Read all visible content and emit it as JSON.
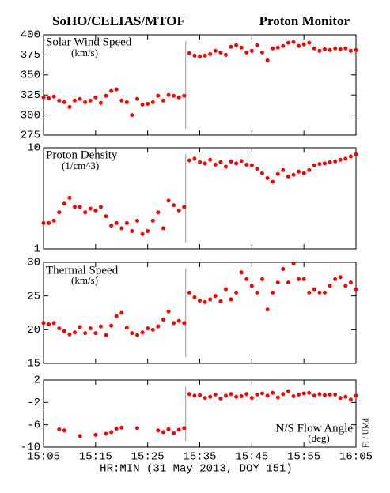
{
  "title_left": "SoHO/CELIAS/MTOF",
  "title_right": "Proton Monitor",
  "x_label": "HR:MIN (31 May 2013, DOY 151)",
  "credit": "FI / UMd",
  "chart_data": [
    {
      "type": "scatter",
      "title": "Solar Wind Speed",
      "unit": "(km/s)",
      "color": "#ff0000",
      "log_scale": false,
      "vline_x": 932.3,
      "xlim": [
        905,
        965
      ],
      "x": [
        905,
        906,
        907,
        908,
        909,
        910,
        911,
        912,
        913,
        914,
        915,
        916,
        917,
        918,
        919,
        920,
        921,
        922,
        923,
        924,
        925,
        926,
        927,
        928,
        929,
        930,
        931,
        932,
        933,
        934,
        935,
        936,
        937,
        938,
        939,
        940,
        941,
        942,
        943,
        944,
        945,
        946,
        947,
        948,
        949,
        950,
        951,
        952,
        953,
        954,
        955,
        956,
        957,
        958,
        959,
        960,
        961,
        962,
        963,
        964,
        965
      ],
      "values": [
        322,
        321,
        323,
        318,
        316,
        310,
        318,
        320,
        316,
        318,
        322,
        315,
        324,
        330,
        332,
        318,
        316,
        300,
        320,
        313,
        314,
        316,
        324,
        318,
        325,
        324,
        322,
        324,
        377,
        374,
        373,
        374,
        376,
        380,
        378,
        375,
        385,
        387,
        384,
        378,
        380,
        387,
        378,
        368,
        383,
        384,
        386,
        390,
        391,
        386,
        388,
        390,
        383,
        380,
        382,
        381,
        383,
        382,
        383,
        380,
        381
      ],
      "ylim": [
        275,
        400
      ],
      "yticks": [
        275,
        300,
        325,
        350,
        375,
        400
      ]
    },
    {
      "type": "scatter",
      "title": "Proton Density",
      "unit": "(1/cm^3)",
      "color": "#ff0000",
      "log_scale": true,
      "vline_x": 932.3,
      "xlim": [
        905,
        965
      ],
      "x": [
        905,
        906,
        907,
        908,
        909,
        910,
        911,
        912,
        913,
        914,
        915,
        916,
        917,
        918,
        919,
        920,
        921,
        922,
        923,
        924,
        925,
        926,
        927,
        928,
        929,
        930,
        931,
        932,
        933,
        934,
        935,
        936,
        937,
        938,
        939,
        940,
        941,
        942,
        943,
        944,
        945,
        946,
        947,
        948,
        949,
        950,
        951,
        952,
        953,
        954,
        955,
        956,
        957,
        958,
        959,
        960,
        961,
        962,
        963,
        964,
        965
      ],
      "values": [
        1.8,
        1.8,
        1.9,
        2.3,
        2.8,
        3.2,
        2.6,
        2.6,
        2.3,
        2.5,
        2.4,
        2.6,
        2.1,
        1.7,
        1.8,
        1.6,
        1.8,
        1.5,
        1.9,
        1.4,
        1.5,
        1.9,
        2.3,
        1.6,
        3.0,
        2.7,
        2.4,
        2.6,
        7.5,
        7.8,
        7.2,
        7.0,
        7.6,
        6.8,
        7.2,
        6.5,
        7.3,
        7.0,
        7.4,
        6.8,
        6.7,
        6.2,
        5.6,
        5.0,
        4.6,
        5.5,
        6.0,
        5.2,
        5.4,
        5.8,
        5.6,
        6.0,
        6.7,
        6.9,
        7.0,
        7.2,
        7.3,
        7.6,
        7.8,
        8.2,
        8.6
      ],
      "ylim": [
        1,
        10
      ],
      "yticks": [
        1,
        10
      ]
    },
    {
      "type": "scatter",
      "title": "Thermal Speed",
      "unit": "(km/s)",
      "color": "#ff0000",
      "log_scale": false,
      "vline_x": 932.3,
      "xlim": [
        905,
        965
      ],
      "x": [
        905,
        906,
        907,
        908,
        909,
        910,
        911,
        912,
        913,
        914,
        915,
        916,
        917,
        918,
        919,
        920,
        921,
        922,
        923,
        924,
        925,
        926,
        927,
        928,
        929,
        930,
        931,
        932,
        933,
        934,
        935,
        936,
        937,
        938,
        939,
        940,
        941,
        942,
        943,
        944,
        945,
        946,
        947,
        948,
        949,
        950,
        951,
        952,
        953,
        954,
        955,
        956,
        957,
        958,
        959,
        960,
        961,
        962,
        963,
        964,
        965
      ],
      "values": [
        21,
        20.8,
        21,
        20.2,
        19.8,
        19.3,
        19.6,
        20.4,
        19.5,
        20.2,
        19.5,
        20.5,
        19.2,
        20.6,
        22,
        22.5,
        20.3,
        19.5,
        19.2,
        19.6,
        20.2,
        20.0,
        20.5,
        21.5,
        22.7,
        21.0,
        21.3,
        21.0,
        25.5,
        24.8,
        24.3,
        24.1,
        24.5,
        25.0,
        24.2,
        26.0,
        24.5,
        25.5,
        28.5,
        27.5,
        26.5,
        25.5,
        27.5,
        23.0,
        25.5,
        27.0,
        29.0,
        27.0,
        29.8,
        27.5,
        27.5,
        25.5,
        26.0,
        25.5,
        25.5,
        26.5,
        27.5,
        27.8,
        26.5,
        27.0,
        26.0
      ],
      "ylim": [
        15,
        30
      ],
      "yticks": [
        15,
        20,
        25,
        30
      ]
    },
    {
      "type": "scatter",
      "title": "N/S Flow Angle",
      "unit": "(deg)",
      "color": "#ff0000",
      "log_scale": false,
      "vline_x": 932.3,
      "xlim": [
        905,
        965
      ],
      "xticks": [
        {
          "value": 905,
          "label": "15:05"
        },
        {
          "value": 915,
          "label": "15:15"
        },
        {
          "value": 925,
          "label": "15:25"
        },
        {
          "value": 935,
          "label": "15:35"
        },
        {
          "value": 945,
          "label": "15:45"
        },
        {
          "value": 955,
          "label": "15:55"
        },
        {
          "value": 965,
          "label": "16:05"
        }
      ],
      "x": [
        905,
        906,
        907,
        908,
        909,
        910,
        911,
        912,
        913,
        914,
        915,
        916,
        917,
        918,
        919,
        920,
        921,
        922,
        923,
        924,
        925,
        926,
        927,
        928,
        929,
        930,
        931,
        932,
        933,
        934,
        935,
        936,
        937,
        938,
        939,
        940,
        941,
        942,
        943,
        944,
        945,
        946,
        947,
        948,
        949,
        950,
        951,
        952,
        953,
        954,
        955,
        956,
        957,
        958,
        959,
        960,
        961,
        962,
        963,
        964,
        965
      ],
      "values": [
        null,
        null,
        null,
        -6.8,
        -7.0,
        null,
        null,
        -8.0,
        null,
        null,
        -7.8,
        null,
        -7.6,
        -7.3,
        -6.7,
        -6.5,
        null,
        null,
        -6.6,
        null,
        null,
        null,
        -7.0,
        -7.3,
        -6.8,
        -7.5,
        -6.9,
        -6.6,
        -0.5,
        -0.8,
        -0.7,
        -1.2,
        -1.0,
        -0.6,
        -1.3,
        -0.8,
        -0.5,
        -1.0,
        -0.9,
        -0.5,
        -1.2,
        -0.6,
        -0.4,
        -0.8,
        -0.3,
        -1.1,
        -0.5,
        0.0,
        -0.9,
        -0.6,
        -0.4,
        -0.3,
        -0.8,
        -0.5,
        -0.7,
        -0.6,
        -0.6,
        -1.2,
        -1.0,
        -1.5,
        -0.8
      ],
      "ylim": [
        -10,
        2
      ],
      "yticks": [
        -10,
        -6,
        -2,
        2
      ]
    }
  ]
}
